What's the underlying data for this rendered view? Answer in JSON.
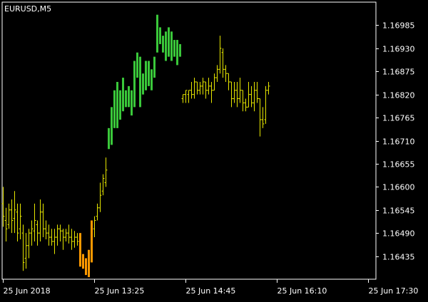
{
  "chart_data": {
    "type": "bar",
    "symbol_label": "EURUSD,M5",
    "background_color": "#000000",
    "frame_color": "#ffffff",
    "colors": {
      "neutral": "#e6e600",
      "bullish": "#3ac83a",
      "bearish": "#ff9900"
    },
    "ylim": [
      1.1638,
      1.1704
    ],
    "y_ticks": [
      "1.16985",
      "1.16930",
      "1.16875",
      "1.16820",
      "1.16765",
      "1.16710",
      "1.16655",
      "1.16600",
      "1.16545",
      "1.16490",
      "1.16435"
    ],
    "x_ticks": [
      {
        "index": 0,
        "label": "25 Jun 2018"
      },
      {
        "index": 32,
        "label": "25 Jun 13:25"
      },
      {
        "index": 64,
        "label": "25 Jun 14:45"
      },
      {
        "index": 96,
        "label": "25 Jun 16:10"
      },
      {
        "index": 128,
        "label": "25 Jun 17:30"
      }
    ],
    "bars": [
      {
        "high": 1.166,
        "low": 1.16505,
        "open": 1.1656,
        "close": 1.1653,
        "color": "neutral"
      },
      {
        "high": 1.1655,
        "low": 1.1647,
        "open": 1.1652,
        "close": 1.165,
        "color": "neutral"
      },
      {
        "high": 1.1656,
        "low": 1.165,
        "open": 1.1651,
        "close": 1.16545,
        "color": "neutral"
      },
      {
        "high": 1.1657,
        "low": 1.1649,
        "open": 1.16545,
        "close": 1.1652,
        "color": "neutral"
      },
      {
        "high": 1.1659,
        "low": 1.1649,
        "open": 1.16525,
        "close": 1.16545,
        "color": "neutral"
      },
      {
        "high": 1.1656,
        "low": 1.1647,
        "open": 1.1654,
        "close": 1.1649,
        "color": "neutral"
      },
      {
        "high": 1.1656,
        "low": 1.16475,
        "open": 1.165,
        "close": 1.1653,
        "color": "neutral"
      },
      {
        "high": 1.1651,
        "low": 1.164,
        "open": 1.1649,
        "close": 1.1642,
        "color": "neutral"
      },
      {
        "high": 1.1649,
        "low": 1.16405,
        "open": 1.1643,
        "close": 1.1646,
        "color": "neutral"
      },
      {
        "high": 1.165,
        "low": 1.1643,
        "open": 1.1646,
        "close": 1.1649,
        "color": "neutral"
      },
      {
        "high": 1.1652,
        "low": 1.1646,
        "open": 1.1649,
        "close": 1.165,
        "color": "neutral"
      },
      {
        "high": 1.1656,
        "low": 1.1647,
        "open": 1.16495,
        "close": 1.1652,
        "color": "neutral"
      },
      {
        "high": 1.1652,
        "low": 1.1646,
        "open": 1.1651,
        "close": 1.1649,
        "color": "neutral"
      },
      {
        "high": 1.1657,
        "low": 1.1647,
        "open": 1.1649,
        "close": 1.1654,
        "color": "neutral"
      },
      {
        "high": 1.1656,
        "low": 1.1648,
        "open": 1.1654,
        "close": 1.165,
        "color": "neutral"
      },
      {
        "high": 1.1652,
        "low": 1.16475,
        "open": 1.165,
        "close": 1.1649,
        "color": "neutral"
      },
      {
        "high": 1.1651,
        "low": 1.1646,
        "open": 1.1649,
        "close": 1.1648,
        "color": "neutral"
      },
      {
        "high": 1.165,
        "low": 1.1646,
        "open": 1.1648,
        "close": 1.1647,
        "color": "neutral"
      },
      {
        "high": 1.165,
        "low": 1.1644,
        "open": 1.1647,
        "close": 1.1648,
        "color": "neutral"
      },
      {
        "high": 1.1651,
        "low": 1.1646,
        "open": 1.1648,
        "close": 1.165,
        "color": "neutral"
      },
      {
        "high": 1.1651,
        "low": 1.1647,
        "open": 1.165,
        "close": 1.16495,
        "color": "neutral"
      },
      {
        "high": 1.165,
        "low": 1.1645,
        "open": 1.16495,
        "close": 1.1648,
        "color": "neutral"
      },
      {
        "high": 1.165,
        "low": 1.1647,
        "open": 1.1648,
        "close": 1.1649,
        "color": "neutral"
      },
      {
        "high": 1.1651,
        "low": 1.16465,
        "open": 1.1649,
        "close": 1.1648,
        "color": "neutral"
      },
      {
        "high": 1.165,
        "low": 1.1645,
        "open": 1.1648,
        "close": 1.1647,
        "color": "neutral"
      },
      {
        "high": 1.16495,
        "low": 1.16455,
        "open": 1.1647,
        "close": 1.1648,
        "color": "neutral"
      },
      {
        "high": 1.1649,
        "low": 1.1646,
        "open": 1.1648,
        "close": 1.1647,
        "color": "neutral"
      },
      {
        "high": 1.1649,
        "low": 1.1641,
        "open": 1.1649,
        "close": 1.1643,
        "color": "bearish"
      },
      {
        "high": 1.1644,
        "low": 1.16405,
        "open": 1.1644,
        "close": 1.16415,
        "color": "bearish"
      },
      {
        "high": 1.1643,
        "low": 1.1639,
        "open": 1.1643,
        "close": 1.164,
        "color": "bearish"
      },
      {
        "high": 1.1645,
        "low": 1.16385,
        "open": 1.1645,
        "close": 1.1639,
        "color": "bearish"
      },
      {
        "high": 1.1652,
        "low": 1.1642,
        "open": 1.1652,
        "close": 1.1644,
        "color": "bearish"
      },
      {
        "high": 1.1653,
        "low": 1.1648,
        "open": 1.165,
        "close": 1.1652,
        "color": "neutral"
      },
      {
        "high": 1.1656,
        "low": 1.1652,
        "open": 1.1653,
        "close": 1.1655,
        "color": "neutral"
      },
      {
        "high": 1.1661,
        "low": 1.1654,
        "open": 1.1655,
        "close": 1.1658,
        "color": "neutral"
      },
      {
        "high": 1.1663,
        "low": 1.1658,
        "open": 1.1659,
        "close": 1.1662,
        "color": "neutral"
      },
      {
        "high": 1.1667,
        "low": 1.166,
        "open": 1.1661,
        "close": 1.1664,
        "color": "neutral"
      },
      {
        "high": 1.1674,
        "low": 1.1669,
        "open": 1.1669,
        "close": 1.1674,
        "color": "bullish"
      },
      {
        "high": 1.1679,
        "low": 1.167,
        "open": 1.1672,
        "close": 1.1678,
        "color": "bullish"
      },
      {
        "high": 1.1683,
        "low": 1.1674,
        "open": 1.1675,
        "close": 1.1683,
        "color": "bullish"
      },
      {
        "high": 1.1685,
        "low": 1.1674,
        "open": 1.1676,
        "close": 1.1683,
        "color": "bullish"
      },
      {
        "high": 1.1683,
        "low": 1.1676,
        "open": 1.1681,
        "close": 1.1679,
        "color": "bullish"
      },
      {
        "high": 1.1686,
        "low": 1.1678,
        "open": 1.1679,
        "close": 1.1684,
        "color": "bullish"
      },
      {
        "high": 1.1683,
        "low": 1.1679,
        "open": 1.1682,
        "close": 1.168,
        "color": "bullish"
      },
      {
        "high": 1.1684,
        "low": 1.1679,
        "open": 1.168,
        "close": 1.1682,
        "color": "bullish"
      },
      {
        "high": 1.1683,
        "low": 1.1677,
        "open": 1.1682,
        "close": 1.1679,
        "color": "bullish"
      },
      {
        "high": 1.169,
        "low": 1.1679,
        "open": 1.1681,
        "close": 1.1688,
        "color": "bullish"
      },
      {
        "high": 1.1692,
        "low": 1.1686,
        "open": 1.1688,
        "close": 1.169,
        "color": "bullish"
      },
      {
        "high": 1.1691,
        "low": 1.1679,
        "open": 1.169,
        "close": 1.168,
        "color": "bullish"
      },
      {
        "high": 1.1687,
        "low": 1.1682,
        "open": 1.1684,
        "close": 1.1686,
        "color": "bullish"
      },
      {
        "high": 1.169,
        "low": 1.1683,
        "open": 1.1686,
        "close": 1.1689,
        "color": "bullish"
      },
      {
        "high": 1.169,
        "low": 1.1684,
        "open": 1.1688,
        "close": 1.1685,
        "color": "bullish"
      },
      {
        "high": 1.1688,
        "low": 1.1683,
        "open": 1.1685,
        "close": 1.1686,
        "color": "bullish"
      },
      {
        "high": 1.1691,
        "low": 1.1686,
        "open": 1.1686,
        "close": 1.1689,
        "color": "bullish"
      },
      {
        "high": 1.1701,
        "low": 1.1692,
        "open": 1.1693,
        "close": 1.17,
        "color": "bullish"
      },
      {
        "high": 1.1698,
        "low": 1.1694,
        "open": 1.1696,
        "close": 1.1695,
        "color": "bullish"
      },
      {
        "high": 1.1696,
        "low": 1.1692,
        "open": 1.1695,
        "close": 1.1693,
        "color": "bullish"
      },
      {
        "high": 1.1697,
        "low": 1.169,
        "open": 1.1693,
        "close": 1.1696,
        "color": "bullish"
      },
      {
        "high": 1.1698,
        "low": 1.1691,
        "open": 1.1696,
        "close": 1.1693,
        "color": "bullish"
      },
      {
        "high": 1.1697,
        "low": 1.169,
        "open": 1.1693,
        "close": 1.1695,
        "color": "bullish"
      },
      {
        "high": 1.1695,
        "low": 1.1691,
        "open": 1.1694,
        "close": 1.1692,
        "color": "bullish"
      },
      {
        "high": 1.1695,
        "low": 1.1689,
        "open": 1.1692,
        "close": 1.1693,
        "color": "bullish"
      },
      {
        "high": 1.1694,
        "low": 1.1691,
        "open": 1.1693,
        "close": 1.1692,
        "color": "bullish"
      },
      {
        "high": 1.1682,
        "low": 1.168,
        "open": 1.1681,
        "close": 1.1682,
        "color": "neutral"
      },
      {
        "high": 1.1683,
        "low": 1.168,
        "open": 1.1682,
        "close": 1.1683,
        "color": "neutral"
      },
      {
        "high": 1.1683,
        "low": 1.168,
        "open": 1.1682,
        "close": 1.1683,
        "color": "neutral"
      },
      {
        "high": 1.1685,
        "low": 1.1681,
        "open": 1.1683,
        "close": 1.1682,
        "color": "neutral"
      },
      {
        "high": 1.1686,
        "low": 1.1681,
        "open": 1.1682,
        "close": 1.1685,
        "color": "neutral"
      },
      {
        "high": 1.1685,
        "low": 1.1682,
        "open": 1.1685,
        "close": 1.1683,
        "color": "neutral"
      },
      {
        "high": 1.1685,
        "low": 1.1682,
        "open": 1.1683,
        "close": 1.1684,
        "color": "neutral"
      },
      {
        "high": 1.1686,
        "low": 1.1682,
        "open": 1.1684,
        "close": 1.1685,
        "color": "neutral"
      },
      {
        "high": 1.1685,
        "low": 1.1681,
        "open": 1.1685,
        "close": 1.1683,
        "color": "neutral"
      },
      {
        "high": 1.1686,
        "low": 1.1682,
        "open": 1.1683,
        "close": 1.1684,
        "color": "neutral"
      },
      {
        "high": 1.1685,
        "low": 1.168,
        "open": 1.1684,
        "close": 1.1683,
        "color": "neutral"
      },
      {
        "high": 1.1687,
        "low": 1.1683,
        "open": 1.1683,
        "close": 1.1686,
        "color": "neutral"
      },
      {
        "high": 1.1689,
        "low": 1.1685,
        "open": 1.1686,
        "close": 1.1688,
        "color": "neutral"
      },
      {
        "high": 1.1696,
        "low": 1.1687,
        "open": 1.1688,
        "close": 1.1693,
        "color": "neutral"
      },
      {
        "high": 1.1693,
        "low": 1.1686,
        "open": 1.1692,
        "close": 1.1688,
        "color": "neutral"
      },
      {
        "high": 1.1689,
        "low": 1.1685,
        "open": 1.1688,
        "close": 1.1687,
        "color": "neutral"
      },
      {
        "high": 1.1687,
        "low": 1.1683,
        "open": 1.1687,
        "close": 1.1685,
        "color": "neutral"
      },
      {
        "high": 1.1685,
        "low": 1.1679,
        "open": 1.1685,
        "close": 1.1681,
        "color": "neutral"
      },
      {
        "high": 1.1685,
        "low": 1.168,
        "open": 1.1681,
        "close": 1.1683,
        "color": "neutral"
      },
      {
        "high": 1.1685,
        "low": 1.1679,
        "open": 1.1683,
        "close": 1.1681,
        "color": "neutral"
      },
      {
        "high": 1.1686,
        "low": 1.168,
        "open": 1.1681,
        "close": 1.1683,
        "color": "neutral"
      },
      {
        "high": 1.1683,
        "low": 1.1678,
        "open": 1.1683,
        "close": 1.168,
        "color": "neutral"
      },
      {
        "high": 1.1681,
        "low": 1.1678,
        "open": 1.168,
        "close": 1.1679,
        "color": "neutral"
      },
      {
        "high": 1.1685,
        "low": 1.1679,
        "open": 1.1679,
        "close": 1.1682,
        "color": "neutral"
      },
      {
        "high": 1.1684,
        "low": 1.1679,
        "open": 1.1682,
        "close": 1.168,
        "color": "neutral"
      },
      {
        "high": 1.1685,
        "low": 1.1678,
        "open": 1.168,
        "close": 1.1683,
        "color": "neutral"
      },
      {
        "high": 1.1685,
        "low": 1.168,
        "open": 1.1683,
        "close": 1.1681,
        "color": "neutral"
      },
      {
        "high": 1.1681,
        "low": 1.1672,
        "open": 1.1681,
        "close": 1.1676,
        "color": "neutral"
      },
      {
        "high": 1.1679,
        "low": 1.1674,
        "open": 1.1676,
        "close": 1.1675,
        "color": "neutral"
      },
      {
        "high": 1.1684,
        "low": 1.1675,
        "open": 1.1676,
        "close": 1.1683,
        "color": "neutral"
      },
      {
        "high": 1.1685,
        "low": 1.1682,
        "open": 1.1683,
        "close": 1.1684,
        "color": "neutral"
      }
    ]
  }
}
